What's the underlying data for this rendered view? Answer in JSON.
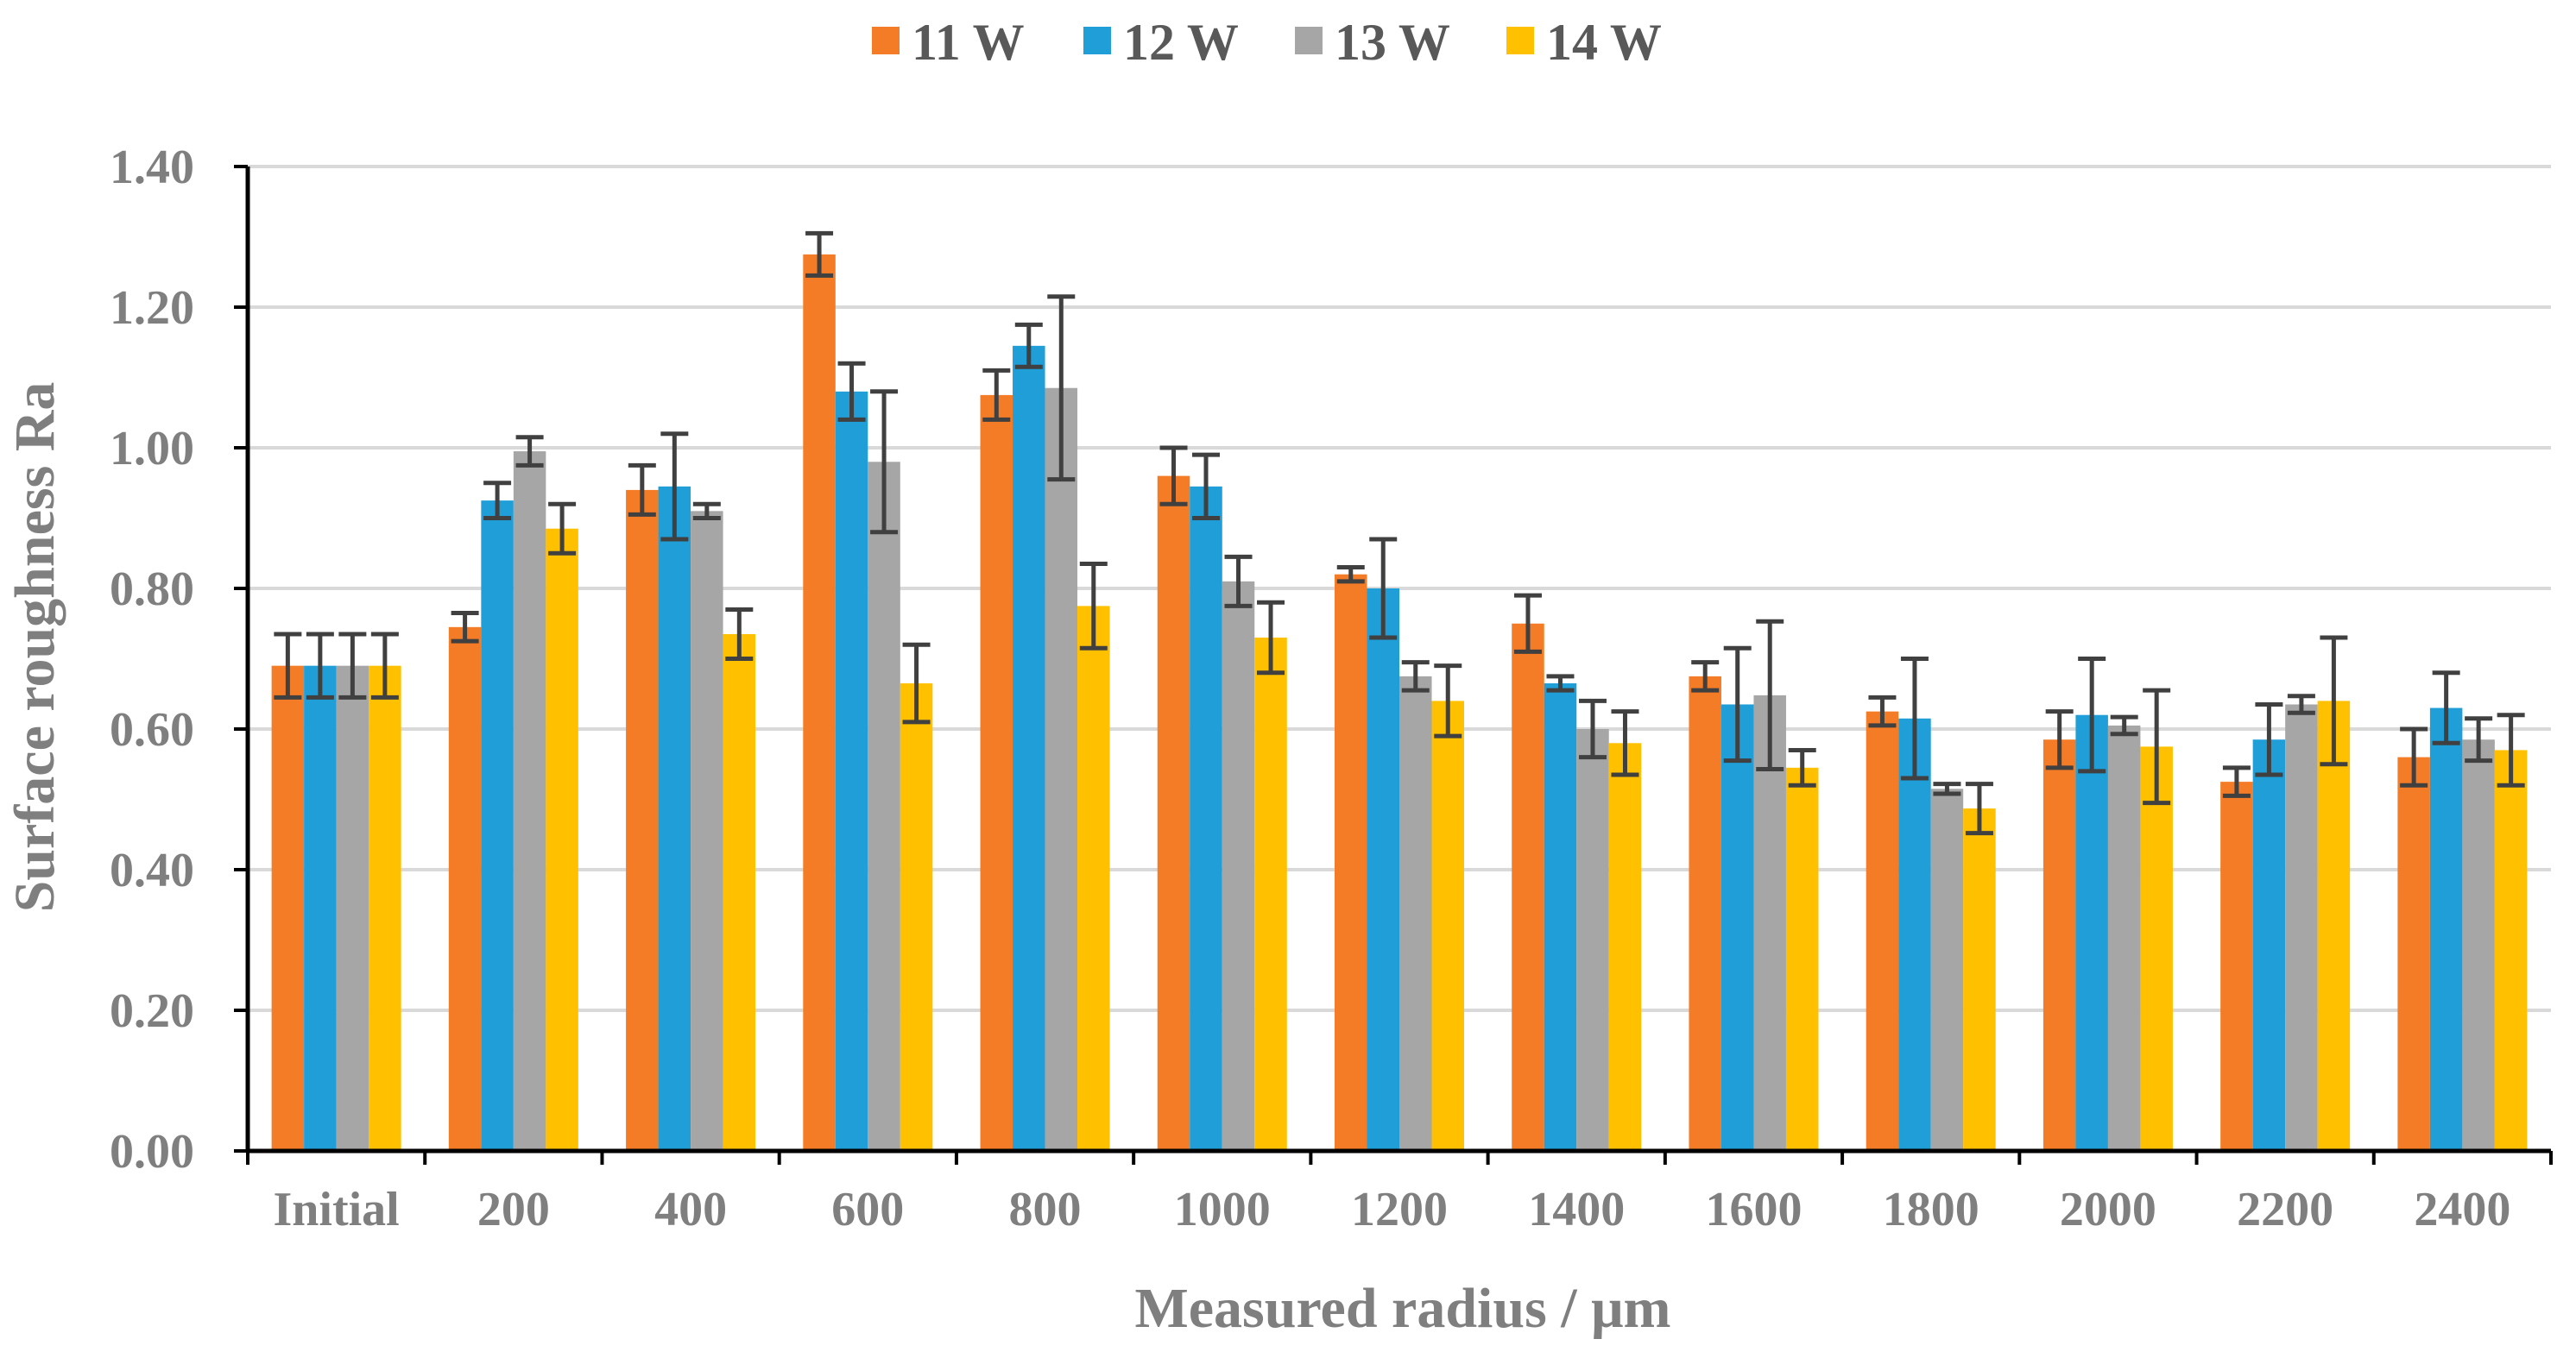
{
  "chart_data": {
    "type": "bar",
    "title": "",
    "xlabel": "Measured radius / μm",
    "ylabel": "Surface roughness Ra",
    "ylim": [
      0,
      1.4
    ],
    "yticks": [
      "0.00",
      "0.20",
      "0.40",
      "0.60",
      "0.80",
      "1.00",
      "1.20",
      "1.40"
    ],
    "grid": true,
    "legend_position": "top",
    "categories": [
      "Initial",
      "200",
      "400",
      "600",
      "800",
      "1000",
      "1200",
      "1400",
      "1600",
      "1800",
      "2000",
      "2200",
      "2400"
    ],
    "series": [
      {
        "name": "11 W",
        "color": "#f57c26",
        "values": [
          0.69,
          0.745,
          0.94,
          1.275,
          1.075,
          0.96,
          0.82,
          0.75,
          0.675,
          0.625,
          0.585,
          0.525,
          0.56
        ],
        "errors": [
          0.045,
          0.02,
          0.035,
          0.03,
          0.035,
          0.04,
          0.01,
          0.04,
          0.02,
          0.02,
          0.04,
          0.02,
          0.04
        ]
      },
      {
        "name": "12 W",
        "color": "#1f9ed8",
        "values": [
          0.69,
          0.925,
          0.945,
          1.08,
          1.145,
          0.945,
          0.8,
          0.665,
          0.635,
          0.615,
          0.62,
          0.585,
          0.63
        ],
        "errors": [
          0.045,
          0.025,
          0.075,
          0.04,
          0.03,
          0.045,
          0.07,
          0.01,
          0.08,
          0.085,
          0.08,
          0.05,
          0.05
        ]
      },
      {
        "name": "13 W",
        "color": "#a6a6a6",
        "values": [
          0.69,
          0.995,
          0.91,
          0.98,
          1.085,
          0.81,
          0.675,
          0.6,
          0.648,
          0.515,
          0.605,
          0.635,
          0.585
        ],
        "errors": [
          0.045,
          0.02,
          0.01,
          0.1,
          0.13,
          0.035,
          0.02,
          0.04,
          0.105,
          0.007,
          0.012,
          0.012,
          0.03
        ]
      },
      {
        "name": "14 W",
        "color": "#ffc000",
        "values": [
          0.69,
          0.885,
          0.735,
          0.665,
          0.775,
          0.73,
          0.64,
          0.58,
          0.545,
          0.487,
          0.575,
          0.64,
          0.57
        ],
        "errors": [
          0.045,
          0.035,
          0.035,
          0.055,
          0.06,
          0.05,
          0.05,
          0.045,
          0.025,
          0.035,
          0.08,
          0.09,
          0.05
        ]
      }
    ]
  }
}
